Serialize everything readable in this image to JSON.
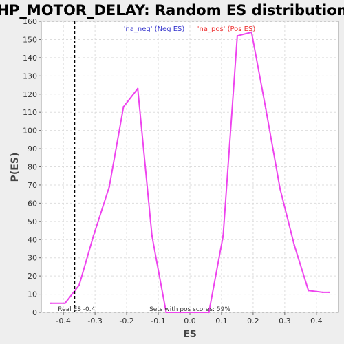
{
  "chart_data": {
    "type": "line",
    "title": "HP_MOTOR_DELAY: Random ES distribution",
    "xlabel": "ES",
    "ylabel": "P(ES)",
    "xlim": [
      -0.47,
      0.47
    ],
    "ylim": [
      0,
      160
    ],
    "xticks": [
      -0.4,
      -0.3,
      -0.2,
      -0.1,
      0.0,
      0.1,
      0.2,
      0.3,
      0.4
    ],
    "xtick_labels": [
      "-0.4",
      "-0.3",
      "-0.2",
      "-0.1",
      "0.0",
      "0.1",
      "0.2",
      "0.3",
      "0.4"
    ],
    "yticks": [
      0,
      10,
      20,
      30,
      40,
      50,
      60,
      70,
      80,
      90,
      100,
      110,
      120,
      130,
      140,
      150,
      160
    ],
    "grid": true,
    "series": [
      {
        "color": "#ee44ee",
        "x": [
          -0.44,
          -0.395,
          -0.35,
          -0.305,
          -0.255,
          -0.21,
          -0.165,
          -0.12,
          -0.075,
          -0.03,
          0.015,
          0.06,
          0.105,
          0.15,
          0.195,
          0.24,
          0.285,
          0.33,
          0.375,
          0.42,
          0.44
        ],
        "y": [
          5,
          5,
          15,
          42,
          69,
          113,
          123,
          42,
          0,
          0,
          0,
          0,
          42,
          152,
          154,
          112,
          68,
          37,
          12,
          11,
          11
        ]
      }
    ],
    "legend": {
      "placement": "top",
      "entries": [
        {
          "label": "'na_neg' (Neg ES)",
          "color": "#3333cc"
        },
        {
          "label": "'na_pos' (Pos ES)",
          "color": "#ee3333"
        }
      ]
    },
    "real_es": {
      "value": -0.365,
      "label": "Real ES -0.4"
    },
    "annotation": "Sets with pos scores: 59%"
  }
}
